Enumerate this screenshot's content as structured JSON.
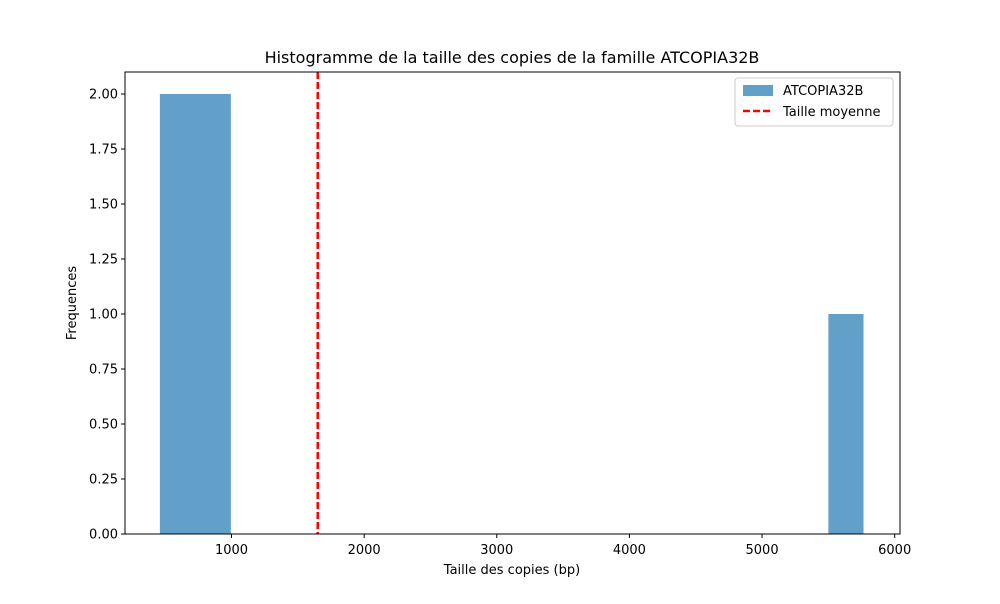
{
  "chart_data": {
    "type": "bar",
    "title": "Histogramme de la taille des copies de la famille ATCOPIA32B",
    "xlabel": "Taille des copies (bp)",
    "ylabel": "Frequences",
    "xlim": [
      197,
      6040
    ],
    "ylim": [
      0,
      2.1
    ],
    "x_ticks": [
      1000,
      2000,
      3000,
      4000,
      5000,
      6000
    ],
    "x_tick_labels": [
      "1000",
      "2000",
      "3000",
      "4000",
      "5000",
      "6000"
    ],
    "y_ticks": [
      0,
      0.25,
      0.5,
      0.75,
      1.0,
      1.25,
      1.5,
      1.75,
      2.0
    ],
    "y_tick_labels": [
      "0.00",
      "0.25",
      "0.50",
      "0.75",
      "1.00",
      "1.25",
      "1.50",
      "1.75",
      "2.00"
    ],
    "grid": false,
    "series": [
      {
        "name": "ATCOPIA32B",
        "color": "#1f77b4",
        "opacity": 0.7,
        "bins": [
          {
            "start": 460,
            "end": 995,
            "count": 2
          },
          {
            "start": 5500,
            "end": 5765,
            "count": 1
          }
        ]
      }
    ],
    "mean_line": {
      "name": "Taille moyenne",
      "x": 1650,
      "color": "#ff0000",
      "style": "dashed"
    },
    "legend": {
      "position": "top-right",
      "entries": [
        "ATCOPIA32B",
        "Taille moyenne"
      ]
    }
  }
}
